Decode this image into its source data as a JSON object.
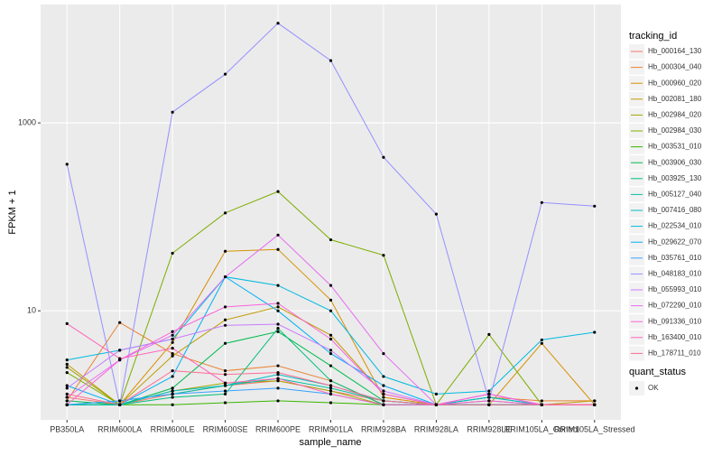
{
  "chart_data": {
    "type": "line",
    "x_label": "sample_name",
    "y_label": "FPKM + 1",
    "legend_title": "tracking_id",
    "log_y": true,
    "grid": true,
    "legend_position": "right",
    "points": {
      "title": "quant_status",
      "levels": [
        "OK"
      ],
      "color": "#000000"
    },
    "categories": [
      "PB350LA",
      "RRIM600LA",
      "RRIM600LE",
      "RRIM600SE",
      "RRIM600PE",
      "RRIM901LA",
      "RRIM928BA",
      "RRIM928LA",
      "RRIM928LE",
      "RRIM105LA_Control",
      "RRIM105LA_Stressed"
    ],
    "ylim": [
      0.69,
      18200
    ],
    "yticks": [
      10,
      1000
    ],
    "series": [
      {
        "name": "Hb_000164_130",
        "color": "#F8766D",
        "values": [
          1.2,
          1,
          1.3,
          1.6,
          1.8,
          1.4,
          1.1,
          1,
          1,
          1,
          1
        ]
      },
      {
        "name": "Hb_000304_040",
        "color": "#EA8331",
        "values": [
          1.1,
          7.5,
          3.5,
          2.3,
          2.6,
          1.8,
          1,
          1,
          1.2,
          1.1,
          1.1
        ]
      },
      {
        "name": "Hb_000960_020",
        "color": "#D89000",
        "values": [
          1,
          1,
          4.6,
          43,
          45,
          13,
          1.2,
          1,
          1,
          4.5,
          1
        ]
      },
      {
        "name": "Hb_002081_180",
        "color": "#C09B00",
        "values": [
          2.7,
          1,
          3.3,
          8,
          11,
          5.5,
          1.3,
          1,
          1,
          1,
          1.1
        ]
      },
      {
        "name": "Hb_002984_020",
        "color": "#A3A500",
        "values": [
          2.5,
          1,
          1.4,
          1.7,
          1.8,
          1.4,
          1,
          1,
          1,
          1,
          1
        ]
      },
      {
        "name": "Hb_002984_030",
        "color": "#7CAE00",
        "values": [
          2.2,
          1,
          41,
          110,
          186,
          57,
          39,
          1,
          5.6,
          1,
          1
        ]
      },
      {
        "name": "Hb_003531_010",
        "color": "#39B600",
        "values": [
          1,
          1,
          1,
          1.05,
          1.1,
          1.05,
          1,
          1,
          1,
          1,
          1
        ]
      },
      {
        "name": "Hb_003906_030",
        "color": "#00BB4E",
        "values": [
          1.1,
          1,
          1.5,
          4.5,
          6,
          2.6,
          1.1,
          1,
          1,
          1,
          1
        ]
      },
      {
        "name": "Hb_003925_130",
        "color": "#00BF7D",
        "values": [
          1,
          1,
          1.2,
          1.3,
          6.5,
          1.8,
          1,
          1,
          1,
          1,
          1
        ]
      },
      {
        "name": "Hb_005127_040",
        "color": "#00C1A3",
        "values": [
          1,
          1.1,
          1.3,
          1.6,
          1.9,
          1.5,
          1.1,
          1,
          1.2,
          1,
          1
        ]
      },
      {
        "name": "Hb_007416_080",
        "color": "#00BFC4",
        "values": [
          1,
          1,
          1.4,
          1.6,
          2.1,
          1.6,
          1.1,
          1,
          1.2,
          1,
          1
        ]
      },
      {
        "name": "Hb_022534_010",
        "color": "#00BAE0",
        "values": [
          3,
          3.8,
          5,
          23,
          18.6,
          10,
          2,
          1.3,
          1.4,
          4.9,
          5.9
        ]
      },
      {
        "name": "Hb_029622_070",
        "color": "#00B0F6",
        "values": [
          1.6,
          1,
          2,
          23,
          10,
          3.5,
          1.6,
          1,
          1,
          1,
          1
        ]
      },
      {
        "name": "Hb_035761_010",
        "color": "#35A2FF",
        "values": [
          1,
          1.1,
          1.3,
          1.4,
          1.5,
          1.3,
          1,
          1,
          1.1,
          1,
          1
        ]
      },
      {
        "name": "Hb_048183_010",
        "color": "#9590FF",
        "values": [
          363,
          1,
          1300,
          3300,
          11500,
          4600,
          430,
          107,
          1.1,
          142,
          130
        ]
      },
      {
        "name": "Hb_055993_010",
        "color": "#C77CFF",
        "values": [
          1.5,
          3.8,
          5,
          7,
          7.2,
          3.8,
          1.4,
          1,
          1.3,
          1,
          1
        ]
      },
      {
        "name": "Hb_072290_010",
        "color": "#E76BF3",
        "values": [
          1.2,
          3,
          5.5,
          23,
          64,
          18.6,
          3.5,
          1,
          1.3,
          1,
          1
        ]
      },
      {
        "name": "Hb_091336_010",
        "color": "#FA62DB",
        "values": [
          1,
          3,
          6,
          11,
          12,
          5,
          1.3,
          1,
          1.3,
          1,
          1
        ]
      },
      {
        "name": "Hb_163400_010",
        "color": "#FF62BC",
        "values": [
          7.3,
          3.1,
          4,
          1.7,
          1.9,
          1.3,
          1,
          1,
          1.1,
          1,
          1
        ]
      },
      {
        "name": "Hb_178711_010",
        "color": "#FF6C91",
        "values": [
          1.3,
          1,
          2.3,
          2.1,
          2.2,
          1.6,
          1.1,
          1,
          1,
          1,
          1
        ]
      }
    ]
  }
}
